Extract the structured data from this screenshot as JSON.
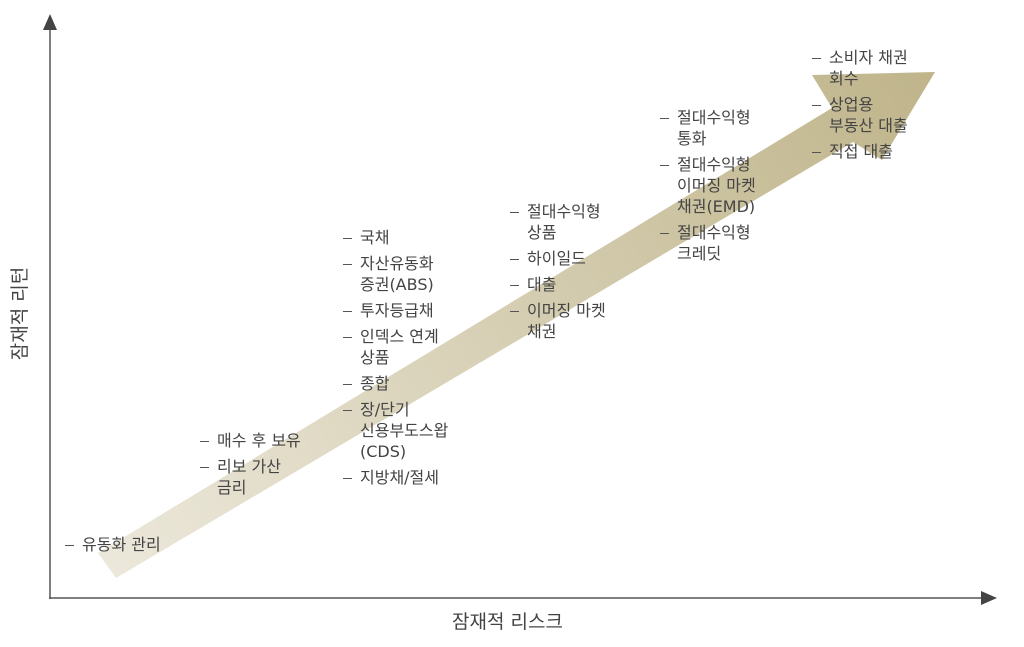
{
  "axes": {
    "y_label": "잠재적 리턴",
    "x_label": "잠재적 리스크"
  },
  "groups": [
    {
      "items": [
        {
          "lines": [
            "유동화 관리"
          ]
        }
      ]
    },
    {
      "items": [
        {
          "lines": [
            "매수 후 보유"
          ]
        },
        {
          "lines": [
            "리보 가산",
            "금리"
          ]
        }
      ]
    },
    {
      "items": [
        {
          "lines": [
            "국채"
          ]
        },
        {
          "lines": [
            "자산유동화",
            "증권(ABS)"
          ]
        },
        {
          "lines": [
            "투자등급채"
          ]
        },
        {
          "lines": [
            "인덱스 연계",
            "상품"
          ]
        },
        {
          "lines": [
            "종합"
          ]
        },
        {
          "lines": [
            "장/단기",
            "신용부도스왑",
            "(CDS)"
          ]
        },
        {
          "lines": [
            "지방채/절세"
          ]
        }
      ]
    },
    {
      "items": [
        {
          "lines": [
            "절대수익형",
            "상품"
          ]
        },
        {
          "lines": [
            "하이일드"
          ]
        },
        {
          "lines": [
            "대출"
          ]
        },
        {
          "lines": [
            "이머징 마켓",
            "채권"
          ]
        }
      ]
    },
    {
      "items": [
        {
          "lines": [
            "절대수익형",
            "통화"
          ]
        },
        {
          "lines": [
            "절대수익형",
            "이머징 마켓",
            "채권(EMD)"
          ]
        },
        {
          "lines": [
            "절대수익형",
            "크레딧"
          ]
        }
      ]
    },
    {
      "items": [
        {
          "lines": [
            "소비자 채권",
            "회수"
          ]
        },
        {
          "lines": [
            "상업용",
            "부동산 대출"
          ]
        },
        {
          "lines": [
            "직접 대출"
          ]
        }
      ]
    }
  ]
}
